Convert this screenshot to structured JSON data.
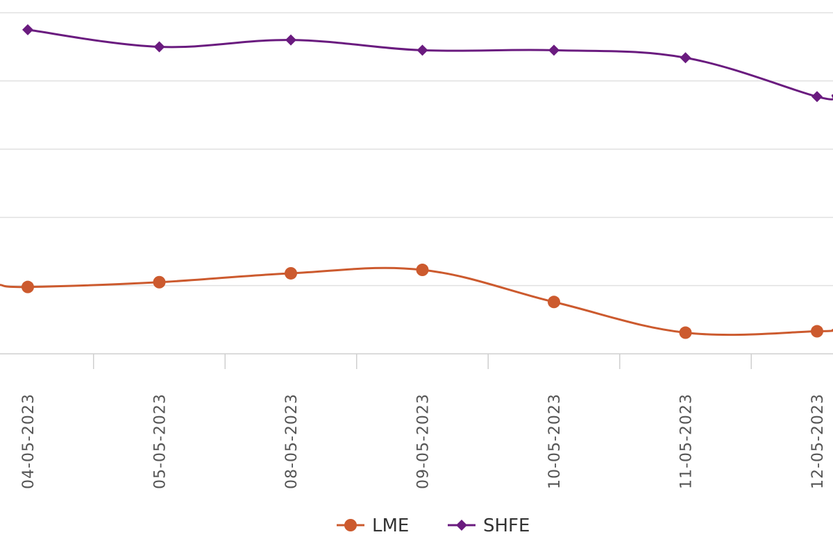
{
  "chart_data": {
    "type": "line",
    "categories": [
      "04-05-2023",
      "05-05-2023",
      "08-05-2023",
      "09-05-2023",
      "10-05-2023",
      "11-05-2023",
      "12-05-2023"
    ],
    "series": [
      {
        "name": "LME",
        "marker": "circle",
        "color": "#cc5a2e",
        "values": [
          0.98,
          1.05,
          1.18,
          1.23,
          0.76,
          0.31,
          0.33
        ]
      },
      {
        "name": "SHFE",
        "marker": "diamond",
        "color": "#6a1b7f",
        "values": [
          4.75,
          4.5,
          4.6,
          4.45,
          4.45,
          4.34,
          3.77
        ]
      }
    ],
    "ylim": [
      0,
      6
    ],
    "grid": true,
    "legend": "bottom-center"
  }
}
